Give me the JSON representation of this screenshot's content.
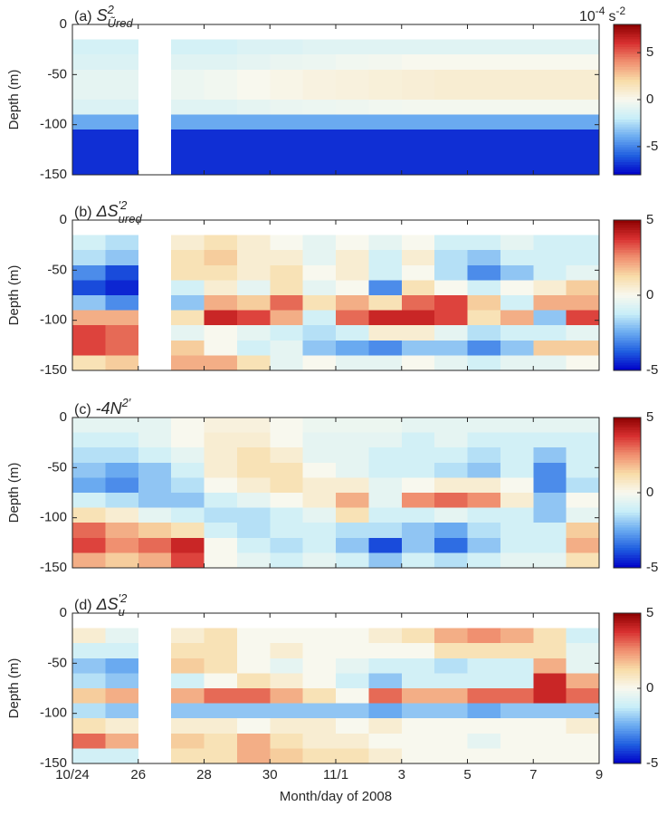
{
  "chart_data": [
    {
      "type": "heatmap",
      "title": {
        "prefix": "(a)",
        "symbol": "S",
        "sup": "2",
        "sub": "Ũred"
      },
      "ylabel": "Depth (m)",
      "colorbar_label": {
        "base": "10",
        "exp": "-4",
        "unit": "s",
        "unit_exp": "-2"
      },
      "xlim": [
        0,
        16
      ],
      "ylim": [
        -150,
        0
      ],
      "yticks": [
        0,
        -50,
        -100,
        -150
      ],
      "clim": [
        -8,
        8
      ],
      "cticks": [
        5,
        0,
        -5
      ],
      "colormap": [
        "#0000c8",
        "#1f5ee0",
        "#6aaaf0",
        "#c8eef8",
        "#f8f8ee",
        "#f8dca8",
        "#f09070",
        "#d83030",
        "#8c0000"
      ],
      "x": [
        0.5,
        1.5,
        2.5,
        3.5,
        4.5,
        5.5,
        6.5,
        7.5,
        8.5,
        9.5,
        10.5,
        11.5,
        12.5,
        13.5,
        14.5,
        15.5
      ],
      "y": [
        -22.5,
        -37.5,
        -52.5,
        -67.5,
        -82.5,
        -97.5,
        -112.5,
        -127.5,
        -142.5
      ],
      "values": [
        [
          -1.5,
          -1.5,
          null,
          -1.5,
          -1.5,
          -1.2,
          -1.2,
          -1,
          -1,
          -1,
          -1,
          -1,
          -1,
          -1,
          -1,
          -1
        ],
        [
          -1.2,
          -1.2,
          null,
          -1,
          -1,
          -0.8,
          -0.6,
          -0.5,
          -0.3,
          -0.2,
          0,
          0,
          0,
          0,
          0,
          0
        ],
        [
          -0.8,
          -0.8,
          null,
          -0.5,
          -0.3,
          0,
          0.2,
          0.4,
          0.5,
          0.6,
          0.7,
          0.8,
          0.8,
          0.8,
          0.8,
          0.8
        ],
        [
          -0.8,
          -0.8,
          null,
          -0.5,
          -0.3,
          0,
          0.2,
          0.4,
          0.5,
          0.6,
          0.7,
          0.8,
          0.8,
          0.8,
          0.8,
          0.8
        ],
        [
          -1.2,
          -1.2,
          null,
          -1,
          -1,
          -0.8,
          -0.6,
          -0.5,
          -0.4,
          -0.3,
          -0.2,
          -0.2,
          -0.2,
          -0.2,
          -0.2,
          -0.2
        ],
        [
          -4,
          -4,
          null,
          -4,
          -4,
          -4,
          -4,
          -4,
          -4,
          -4,
          -4,
          -4,
          -4,
          -4,
          -4,
          -4
        ],
        [
          -7,
          -7,
          null,
          -7,
          -7,
          -7,
          -7,
          -7,
          -7,
          -7,
          -7,
          -7,
          -7,
          -7,
          -7,
          -7
        ],
        [
          -7,
          -7,
          null,
          -7,
          -7,
          -7,
          -7,
          -7,
          -7,
          -7,
          -7,
          -7,
          -7,
          -7,
          -7,
          -7
        ],
        [
          -7,
          -7,
          null,
          -7,
          -7,
          -7,
          -7,
          -7,
          -7,
          -7,
          -7,
          -7,
          -7,
          -7,
          -7,
          -7
        ]
      ]
    },
    {
      "type": "heatmap",
      "title": {
        "prefix": "(b)",
        "symbol": "ΔS",
        "sup": "′2",
        "sub": "ured"
      },
      "ylabel": "Depth (m)",
      "xlim": [
        0,
        16
      ],
      "ylim": [
        -150,
        0
      ],
      "yticks": [
        0,
        -50,
        -100,
        -150
      ],
      "clim": [
        -5,
        5
      ],
      "cticks": [
        5,
        0,
        -5
      ],
      "colormap": [
        "#0000c8",
        "#1f5ee0",
        "#6aaaf0",
        "#c8eef8",
        "#f8f8ee",
        "#f8dca8",
        "#f09070",
        "#d83030",
        "#8c0000"
      ],
      "x": [
        0.5,
        1.5,
        2.5,
        3.5,
        4.5,
        5.5,
        6.5,
        7.5,
        8.5,
        9.5,
        10.5,
        11.5,
        12.5,
        13.5,
        14.5,
        15.5
      ],
      "y": [
        -22.5,
        -37.5,
        -52.5,
        -67.5,
        -82.5,
        -97.5,
        -112.5,
        -127.5,
        -142.5
      ],
      "values": [
        [
          -1,
          -1.5,
          null,
          0.5,
          1,
          0.5,
          0,
          -0.5,
          0,
          -0.5,
          0,
          -1,
          -1,
          -0.5,
          -1,
          -1
        ],
        [
          -1.5,
          -2,
          null,
          1,
          1.5,
          0.5,
          0.5,
          -0.5,
          0.5,
          -1,
          0.5,
          -1.5,
          -2,
          -1,
          -1,
          -1
        ],
        [
          -3,
          -4,
          null,
          1,
          1,
          0.5,
          1,
          0,
          0.5,
          -1,
          0,
          -1.5,
          -3,
          -2,
          -1,
          -0.5
        ],
        [
          -4,
          -4.5,
          null,
          -1,
          0.5,
          -0.5,
          1,
          -0.5,
          0,
          -3,
          1,
          0,
          -1,
          0,
          0.5,
          1.5
        ],
        [
          -2,
          -3,
          null,
          -2,
          2,
          1.5,
          3,
          1,
          2,
          1,
          3,
          3.5,
          1.5,
          -1,
          2,
          2
        ],
        [
          2,
          2,
          null,
          1,
          4,
          3.5,
          2,
          -1,
          3,
          4,
          4,
          3.5,
          1,
          2,
          -2,
          3.5
        ],
        [
          3.5,
          3,
          null,
          -0.5,
          0,
          -0.5,
          -1,
          -1.5,
          -1,
          0.5,
          0.5,
          -0.5,
          -1.5,
          -1,
          -1,
          -0.5
        ],
        [
          3.5,
          3,
          null,
          1.5,
          0,
          -1,
          -0.5,
          -2,
          -2.5,
          -3,
          -2,
          -2,
          -3,
          -2,
          1.5,
          1.5
        ],
        [
          1,
          1.5,
          null,
          2,
          2,
          1,
          -0.5,
          0,
          -0.5,
          -0.5,
          0,
          -0.5,
          -1,
          -0.5,
          -0.5,
          0
        ]
      ]
    },
    {
      "type": "heatmap",
      "title": {
        "prefix": "(c)",
        "symbol": "-4N",
        "sup": "2′"
      },
      "ylabel": "Depth (m)",
      "xlim": [
        0,
        16
      ],
      "ylim": [
        -150,
        0
      ],
      "yticks": [
        0,
        -50,
        -100,
        -150
      ],
      "clim": [
        -5,
        5
      ],
      "cticks": [
        5,
        0,
        -5
      ],
      "colormap": [
        "#0000c8",
        "#1f5ee0",
        "#6aaaf0",
        "#c8eef8",
        "#f8f8ee",
        "#f8dca8",
        "#f09070",
        "#d83030",
        "#8c0000"
      ],
      "x": [
        0.5,
        1.5,
        2.5,
        3.5,
        4.5,
        5.5,
        6.5,
        7.5,
        8.5,
        9.5,
        10.5,
        11.5,
        12.5,
        13.5,
        14.5,
        15.5
      ],
      "y": [
        -7.5,
        -22.5,
        -37.5,
        -52.5,
        -67.5,
        -82.5,
        -97.5,
        -112.5,
        -127.5,
        -142.5
      ],
      "values": [
        [
          -0.5,
          -0.5,
          -0.5,
          0,
          0.3,
          0.3,
          0,
          -0.3,
          -0.3,
          -0.3,
          -0.5,
          -0.5,
          -0.5,
          -0.5,
          -0.5,
          -0.5
        ],
        [
          -1,
          -1,
          -0.5,
          0,
          0.5,
          0.5,
          0,
          -0.5,
          -0.5,
          -0.5,
          -1,
          -0.5,
          -1,
          -1,
          -1,
          -1
        ],
        [
          -1.5,
          -1.5,
          -1,
          -0.5,
          0.5,
          1,
          0.5,
          -0.5,
          -0.5,
          -1,
          -1,
          -1,
          -1.5,
          -1,
          -2,
          -1
        ],
        [
          -2,
          -2.5,
          -2,
          -1,
          0.5,
          1,
          1,
          0,
          -0.5,
          -1,
          -1,
          -1.5,
          -2,
          -1,
          -3,
          -1
        ],
        [
          -2.5,
          -3,
          -2,
          -1.5,
          0,
          0.5,
          1,
          0.5,
          0.5,
          -0.5,
          0,
          0.5,
          0.5,
          0,
          -3,
          -1.5
        ],
        [
          -1,
          -1.5,
          -2,
          -2,
          -1,
          -0.5,
          0,
          0.5,
          2,
          -0.5,
          2.5,
          3,
          2.5,
          0.5,
          -2,
          0
        ],
        [
          1,
          0.5,
          -0.5,
          -1,
          -1.5,
          -1.5,
          -1,
          -0.5,
          1,
          -1,
          -1,
          -0.5,
          -1,
          -1,
          -2,
          -0.5
        ],
        [
          3,
          2,
          1.5,
          1,
          -1,
          -1.5,
          -1,
          -1,
          -1.5,
          -1.5,
          -2,
          -2.5,
          -1.5,
          -1,
          -1,
          1.5
        ],
        [
          3.5,
          2.5,
          3,
          4,
          0,
          -1,
          -1.5,
          -1,
          -2,
          -4,
          -2,
          -3.5,
          -2,
          -1,
          -1,
          2
        ],
        [
          2,
          1.5,
          2,
          3.5,
          0,
          -0.5,
          -1,
          -0.5,
          -1,
          -2,
          -1,
          -1.5,
          -1,
          -0.5,
          -0.5,
          1
        ]
      ]
    },
    {
      "type": "heatmap",
      "title": {
        "prefix": "(d)",
        "symbol": "ΔS",
        "sup": "′2",
        "sub": "u"
      },
      "ylabel": "Depth (m)",
      "xlabel": "Month/day of 2008",
      "xlim": [
        0,
        16
      ],
      "xticks": [
        {
          "value": 0,
          "label": "10/24"
        },
        {
          "value": 2,
          "label": "26"
        },
        {
          "value": 4,
          "label": "28"
        },
        {
          "value": 6,
          "label": "30"
        },
        {
          "value": 8,
          "label": "11/1"
        },
        {
          "value": 10,
          "label": "3"
        },
        {
          "value": 12,
          "label": "5"
        },
        {
          "value": 14,
          "label": "7"
        },
        {
          "value": 16,
          "label": "9"
        }
      ],
      "ylim": [
        -150,
        0
      ],
      "yticks": [
        0,
        -50,
        -100,
        -150
      ],
      "clim": [
        -5,
        5
      ],
      "cticks": [
        5,
        0,
        -5
      ],
      "colormap": [
        "#0000c8",
        "#1f5ee0",
        "#6aaaf0",
        "#c8eef8",
        "#f8f8ee",
        "#f8dca8",
        "#f09070",
        "#d83030",
        "#8c0000"
      ],
      "x": [
        0.5,
        1.5,
        2.5,
        3.5,
        4.5,
        5.5,
        6.5,
        7.5,
        8.5,
        9.5,
        10.5,
        11.5,
        12.5,
        13.5,
        14.5,
        15.5
      ],
      "y": [
        -22.5,
        -37.5,
        -52.5,
        -67.5,
        -82.5,
        -97.5,
        -112.5,
        -127.5,
        -142.5
      ],
      "values": [
        [
          0.5,
          -0.5,
          null,
          0.5,
          1,
          0,
          0,
          0,
          0,
          0.5,
          1,
          2,
          2.5,
          2,
          1,
          -1
        ],
        [
          -1,
          -1,
          null,
          1,
          1,
          0,
          0.5,
          0,
          0,
          0,
          0,
          1,
          1,
          1,
          1,
          -0.5
        ],
        [
          -2,
          -2.5,
          null,
          1.5,
          1,
          0,
          -0.5,
          0,
          -0.5,
          -1,
          -1,
          -1.5,
          -1,
          -1,
          2,
          -0.5
        ],
        [
          -1.5,
          -2,
          null,
          -1,
          0,
          1,
          0.5,
          0,
          -1,
          -2,
          -1,
          -1,
          -1,
          -1,
          4,
          2
        ],
        [
          1.5,
          2,
          null,
          2,
          3,
          3,
          2,
          1,
          0,
          3,
          2,
          2,
          3,
          3,
          4,
          3
        ],
        [
          -1.5,
          -2,
          null,
          -2,
          -2,
          -2,
          -2,
          -2,
          -2,
          -2.5,
          -2,
          -2,
          -2.5,
          -2,
          -2,
          -2
        ],
        [
          1,
          0.5,
          null,
          0.5,
          0.5,
          0,
          0.5,
          0.5,
          0,
          0.5,
          0,
          0,
          0,
          0,
          0,
          0.5
        ],
        [
          3,
          2,
          null,
          1.5,
          1,
          2,
          1,
          0.5,
          0.5,
          0,
          0,
          0,
          -0.5,
          0,
          0,
          0
        ],
        [
          -1,
          -1,
          null,
          1,
          1,
          2,
          1.5,
          1,
          1,
          0.5,
          0,
          0,
          0,
          0,
          0,
          0
        ]
      ]
    }
  ]
}
